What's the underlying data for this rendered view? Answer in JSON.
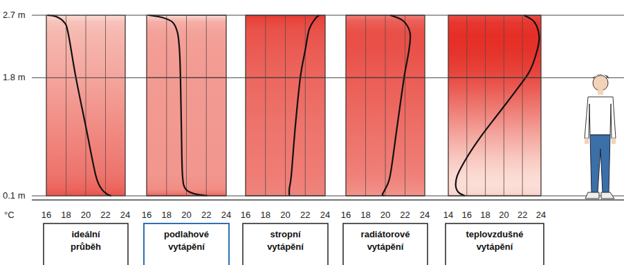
{
  "chart_data": [
    {
      "type": "line",
      "title": "ideální průběh",
      "xlabel": "°C",
      "color": "#111111",
      "x": [
        16.1,
        17.0,
        17.8,
        18.2,
        19.0,
        20.0,
        21.0,
        21.6,
        22.2,
        22.6
      ],
      "values": [
        2.7,
        2.68,
        2.6,
        2.45,
        1.8,
        1.1,
        0.4,
        0.2,
        0.12,
        0.1
      ],
      "xlim": [
        16,
        24
      ],
      "xticks": [
        16,
        18,
        20,
        22,
        24
      ],
      "ylim": [
        0.1,
        2.7
      ],
      "yticks": [
        {
          "value": 0.1,
          "label": "0.1 m"
        },
        {
          "value": 1.8,
          "label": "1.8 m"
        },
        {
          "value": 2.7,
          "label": "2.7 m"
        }
      ],
      "grid": true
    },
    {
      "type": "line",
      "title": "podlahové vytápění",
      "color": "#111111",
      "x": [
        16.2,
        17.5,
        18.6,
        19.1,
        19.3,
        19.4,
        19.5,
        19.6,
        19.9,
        20.8,
        22.1
      ],
      "values": [
        2.7,
        2.67,
        2.6,
        2.45,
        2.2,
        1.8,
        1.0,
        0.4,
        0.2,
        0.13,
        0.1
      ],
      "xlim": [
        16,
        24
      ],
      "xticks": [
        16,
        18,
        20,
        22,
        24
      ],
      "ylim": [
        0.1,
        2.7
      ],
      "yticks": [
        0.1,
        1.8,
        2.7
      ],
      "tick_labels": "x",
      "grid": true
    },
    {
      "type": "line",
      "title": "stropní vytápění",
      "color": "#111111",
      "x": [
        23.4,
        23.0,
        22.4,
        22.0,
        21.5,
        21.0,
        20.6,
        20.4,
        20.4
      ],
      "values": [
        2.7,
        2.65,
        2.5,
        2.2,
        1.8,
        1.1,
        0.4,
        0.2,
        0.1
      ],
      "xlim": [
        16,
        24
      ],
      "xticks": [
        16,
        18,
        20,
        22,
        24
      ],
      "ylim": [
        0.1,
        2.7
      ],
      "yticks": [
        0.1,
        1.8,
        2.7
      ],
      "tick_labels": "x",
      "grid": true
    },
    {
      "type": "line",
      "title": "radiátorové vytápění",
      "color": "#111111",
      "x": [
        20.5,
        21.8,
        22.5,
        22.4,
        21.9,
        21.2,
        20.5,
        20.0,
        19.7,
        19.9
      ],
      "values": [
        2.7,
        2.62,
        2.45,
        2.2,
        1.8,
        1.1,
        0.4,
        0.2,
        0.12,
        0.1
      ],
      "xlim": [
        16,
        24
      ],
      "xticks": [
        16,
        18,
        20,
        22,
        24
      ],
      "ylim": [
        0.1,
        2.7
      ],
      "yticks": [
        0.1,
        1.8,
        2.7
      ],
      "tick_labels": "x",
      "grid": true
    },
    {
      "type": "line",
      "title": "teplovzdušné vytápění",
      "color": "#111111",
      "x": [
        22.2,
        23.3,
        23.8,
        23.6,
        22.8,
        21.5,
        19.5,
        17.5,
        16.0,
        15.0,
        14.8,
        15.1,
        15.8
      ],
      "values": [
        2.7,
        2.6,
        2.4,
        2.2,
        1.9,
        1.65,
        1.3,
        0.95,
        0.65,
        0.4,
        0.25,
        0.15,
        0.1
      ],
      "xlim": [
        14,
        24
      ],
      "xticks": [
        14,
        16,
        18,
        20,
        22,
        24
      ],
      "ylim": [
        0.1,
        2.7
      ],
      "yticks": [
        0.1,
        1.8,
        2.7
      ],
      "tick_labels": "x",
      "grid": true
    }
  ]
}
